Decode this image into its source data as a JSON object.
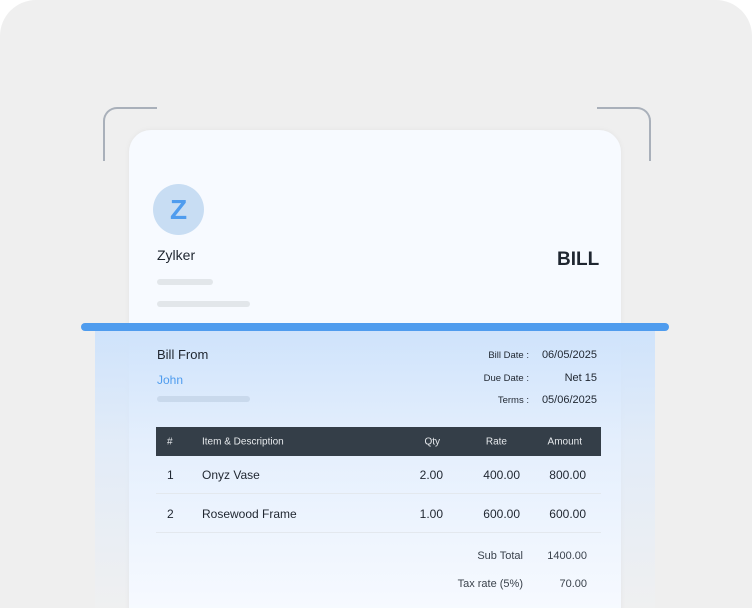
{
  "company": {
    "logo_letter": "Z",
    "name": "Zylker"
  },
  "doc_title": "BILL",
  "bill_from": {
    "label": "Bill From",
    "name": "John"
  },
  "meta": [
    {
      "label": "Bill Date :",
      "value": "06/05/2025"
    },
    {
      "label": "Due Date :",
      "value": "Net 15"
    },
    {
      "label": "Terms :",
      "value": "05/06/2025"
    }
  ],
  "table": {
    "headers": [
      "#",
      "Item & Description",
      "Qty",
      "Rate",
      "Amount"
    ],
    "rows": [
      [
        "1",
        "Onyz Vase",
        "2.00",
        "400.00",
        "800.00"
      ],
      [
        "2",
        "Rosewood Frame",
        "1.00",
        "600.00",
        "600.00"
      ]
    ]
  },
  "totals": [
    {
      "label": "Sub Total",
      "value": "1400.00"
    },
    {
      "label": "Tax rate (5%)",
      "value": "70.00"
    }
  ],
  "colors": {
    "accent": "#4f9cee",
    "header": "#343e48"
  }
}
